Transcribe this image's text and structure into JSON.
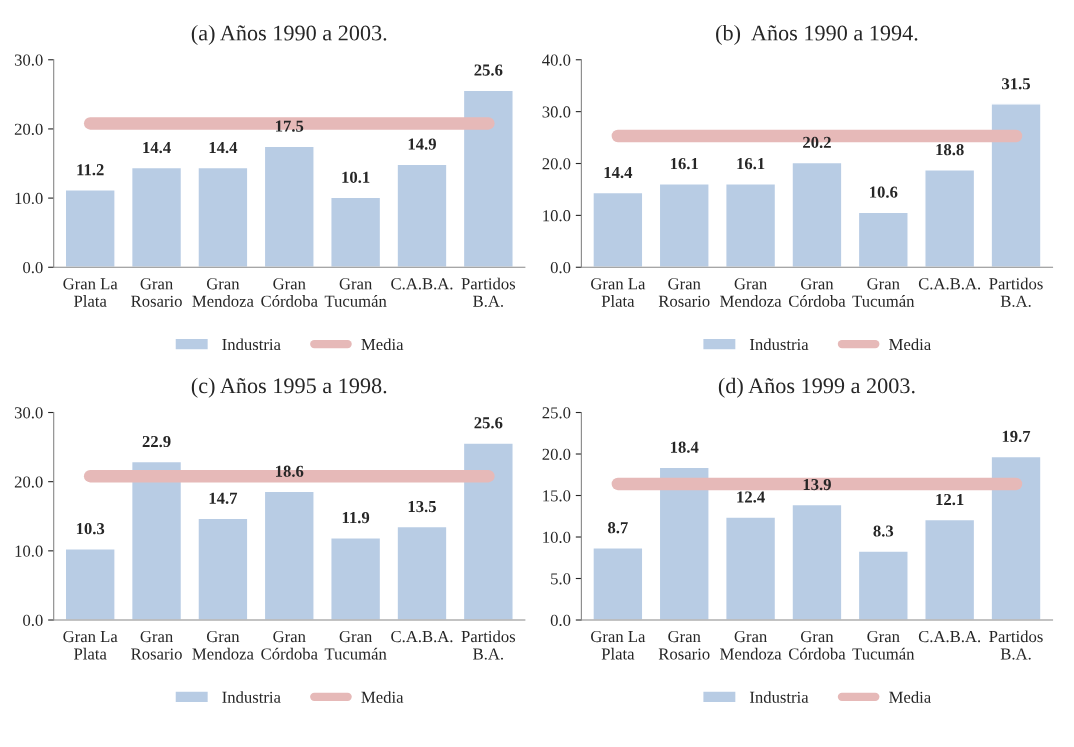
{
  "chart_data": [
    {
      "type": "bar",
      "title": "(a) Años 1990 a 2003.",
      "categories": [
        "Gran La\nPlata",
        "Gran\nRosario",
        "Gran\nMendoza",
        "Gran\nCórdoba",
        "Gran\nTucumán",
        "C.A.B.A.",
        "Partidos\nB.A."
      ],
      "series": [
        {
          "name": "Industria",
          "color": "#b8cce4",
          "values": [
            11.2,
            14.4,
            14.4,
            17.5,
            10.1,
            14.9,
            25.6
          ],
          "value_labels": [
            "11.2",
            "14.4",
            "14.4",
            "17.5",
            "10.1",
            "14.9",
            "25.6"
          ]
        },
        {
          "name": "Media",
          "type": "line",
          "color": "#e6b9b8",
          "values": [
            20.8,
            20.8,
            20.8,
            20.8,
            20.8,
            20.8,
            20.8
          ]
        }
      ],
      "ylim": [
        0,
        30
      ],
      "yticks": [
        {
          "value": 0,
          "label": "0.0"
        },
        {
          "value": 10,
          "label": "10.0"
        },
        {
          "value": 20,
          "label": "20.0"
        },
        {
          "value": 30,
          "label": "30.0"
        }
      ],
      "legend": "bottom",
      "grid": false
    },
    {
      "type": "bar",
      "title": "(b)  Años 1990 a 1994.",
      "categories": [
        "Gran La\nPlata",
        "Gran\nRosario",
        "Gran\nMendoza",
        "Gran\nCórdoba",
        "Gran\nTucumán",
        "C.A.B.A.",
        "Partidos\nB.A."
      ],
      "series": [
        {
          "name": "Industria",
          "color": "#b8cce4",
          "values": [
            14.4,
            16.1,
            16.1,
            20.2,
            10.6,
            18.8,
            31.5
          ],
          "value_labels": [
            "14.4",
            "16.1",
            "16.1",
            "20.2",
            "10.6",
            "18.8",
            "31.5"
          ]
        },
        {
          "name": "Media",
          "type": "line",
          "color": "#e6b9b8",
          "values": [
            25.3,
            25.3,
            25.3,
            25.3,
            25.3,
            25.3,
            25.3
          ]
        }
      ],
      "ylim": [
        0,
        40
      ],
      "yticks": [
        {
          "value": 0,
          "label": "0.0"
        },
        {
          "value": 10,
          "label": "10.0"
        },
        {
          "value": 20,
          "label": "20.0"
        },
        {
          "value": 30,
          "label": "30.0"
        },
        {
          "value": 40,
          "label": "40.0"
        }
      ],
      "legend": "bottom",
      "grid": false
    },
    {
      "type": "bar",
      "title": "(c) Años 1995 a 1998.",
      "categories": [
        "Gran La\nPlata",
        "Gran\nRosario",
        "Gran\nMendoza",
        "Gran\nCórdoba",
        "Gran\nTucumán",
        "C.A.B.A.",
        "Partidos\nB.A."
      ],
      "series": [
        {
          "name": "Industria",
          "color": "#b8cce4",
          "values": [
            10.3,
            22.9,
            14.7,
            18.6,
            11.9,
            13.5,
            25.6
          ],
          "value_labels": [
            "10.3",
            "22.9",
            "14.7",
            "18.6",
            "11.9",
            "13.5",
            "25.6"
          ]
        },
        {
          "name": "Media",
          "type": "line",
          "color": "#e6b9b8",
          "values": [
            20.8,
            20.8,
            20.8,
            20.8,
            20.8,
            20.8,
            20.8
          ]
        }
      ],
      "ylim": [
        0,
        30
      ],
      "yticks": [
        {
          "value": 0,
          "label": "0.0"
        },
        {
          "value": 10,
          "label": "10.0"
        },
        {
          "value": 20,
          "label": "20.0"
        },
        {
          "value": 30,
          "label": "30.0"
        }
      ],
      "legend": "bottom",
      "grid": false
    },
    {
      "type": "bar",
      "title": "(d) Años 1999 a 2003.",
      "categories": [
        "Gran La\nPlata",
        "Gran\nRosario",
        "Gran\nMendoza",
        "Gran\nCórdoba",
        "Gran\nTucumán",
        "C.A.B.A.",
        "Partidos\nB.A."
      ],
      "series": [
        {
          "name": "Industria",
          "color": "#b8cce4",
          "values": [
            8.7,
            18.4,
            12.4,
            13.9,
            8.3,
            12.1,
            19.7
          ],
          "value_labels": [
            "8.7",
            "18.4",
            "12.4",
            "13.9",
            "8.3",
            "12.1",
            "19.7"
          ]
        },
        {
          "name": "Media",
          "type": "line",
          "color": "#e6b9b8",
          "values": [
            16.4,
            16.4,
            16.4,
            16.4,
            16.4,
            16.4,
            16.4
          ]
        }
      ],
      "ylim": [
        0,
        25
      ],
      "yticks": [
        {
          "value": 0,
          "label": "0.0"
        },
        {
          "value": 5,
          "label": "5.0"
        },
        {
          "value": 10,
          "label": "10.0"
        },
        {
          "value": 15,
          "label": "15.0"
        },
        {
          "value": 20,
          "label": "20.0"
        },
        {
          "value": 25,
          "label": "25.0"
        }
      ],
      "legend": "bottom",
      "grid": false
    }
  ]
}
